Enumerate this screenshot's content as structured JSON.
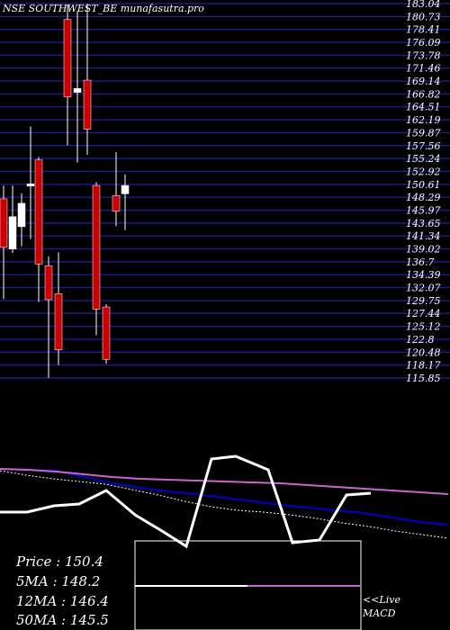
{
  "title": "NSE SOUTHWEST_BE munafasutra.pro",
  "info": {
    "price_label": "Price   :",
    "price": "150.4",
    "ma5_label": "5MA :",
    "ma5": "148.2",
    "ma12_label": "12MA :",
    "ma12": "146.4",
    "ma50_label": "50MA :",
    "ma50": "145.5"
  },
  "macd_label_live": "<<Live",
  "macd_label": "MACD",
  "colors": {
    "up": "#ffffff",
    "down": "#cc0000",
    "grid": "#1c1c8c",
    "ma_fast": "#ffffff",
    "ma_mid": "#0000cc",
    "ma_slow": "#cc66cc"
  },
  "chart_data": {
    "type": "candlestick",
    "title": "NSE SOUTHWEST_BE munafasutra.pro",
    "y_ticks": [
      "183.04",
      "180.73",
      "178.41",
      "176.09",
      "173.78",
      "171.46",
      "169.14",
      "166.82",
      "164.51",
      "162.19",
      "159.87",
      "157.56",
      "155.24",
      "152.92",
      "150.61",
      "148.29",
      "145.97",
      "143.65",
      "141.34",
      "139.02",
      "136.7",
      "134.39",
      "132.07",
      "129.75",
      "127.44",
      "125.12",
      "122.8",
      "120.48",
      "118.17",
      "115.85"
    ],
    "ylim": [
      115.85,
      183.04
    ],
    "candles": [
      {
        "o": 148.0,
        "h": 150.4,
        "l": 130.0,
        "c": 139.3
      },
      {
        "o": 139.0,
        "h": 150.4,
        "l": 138.3,
        "c": 144.8
      },
      {
        "o": 143.0,
        "h": 149.0,
        "l": 139.5,
        "c": 147.2
      },
      {
        "o": 150.3,
        "h": 161.0,
        "l": 140.8,
        "c": 150.7
      },
      {
        "o": 155.0,
        "h": 155.5,
        "l": 129.5,
        "c": 136.3
      },
      {
        "o": 136.0,
        "h": 137.7,
        "l": 115.9,
        "c": 129.9
      },
      {
        "o": 131.0,
        "h": 138.4,
        "l": 118.2,
        "c": 120.9
      },
      {
        "o": 180.2,
        "h": 182.8,
        "l": 157.6,
        "c": 166.3
      },
      {
        "o": 167.1,
        "h": 181.7,
        "l": 154.5,
        "c": 167.8
      },
      {
        "o": 169.3,
        "h": 183.0,
        "l": 155.9,
        "c": 160.5
      },
      {
        "o": 150.4,
        "h": 151.0,
        "l": 123.5,
        "c": 128.2
      },
      {
        "o": 128.6,
        "h": 129.1,
        "l": 118.4,
        "c": 119.2
      },
      {
        "o": 148.6,
        "h": 156.4,
        "l": 143.1,
        "c": 145.8
      },
      {
        "o": 148.9,
        "h": 152.4,
        "l": 142.4,
        "c": 150.4
      }
    ],
    "ma_lines": [
      {
        "name": "5MA",
        "color": "#ffffff",
        "y": [
          523,
          528,
          532,
          535,
          538,
          544,
          550,
          557,
          563,
          567,
          569,
          572,
          576,
          581,
          585,
          590,
          594,
          598
        ]
      },
      {
        "name": "12MA",
        "color": "#0000cc",
        "y": [
          521,
          522,
          523,
          530,
          537,
          542,
          546,
          549,
          553,
          557,
          561,
          564,
          567,
          570,
          575,
          580,
          583
        ]
      },
      {
        "name": "50MA",
        "color": "#cc66cc",
        "y": [
          521,
          522,
          524,
          527,
          530,
          532,
          533,
          534,
          535,
          536,
          537,
          539,
          541,
          543,
          545,
          547,
          549
        ]
      }
    ],
    "macd": {
      "line": [
        569,
        569,
        562,
        560,
        545,
        572,
        590,
        607,
        510,
        507,
        522,
        603,
        600,
        550,
        548
      ],
      "signal": [
        651,
        651
      ]
    }
  }
}
